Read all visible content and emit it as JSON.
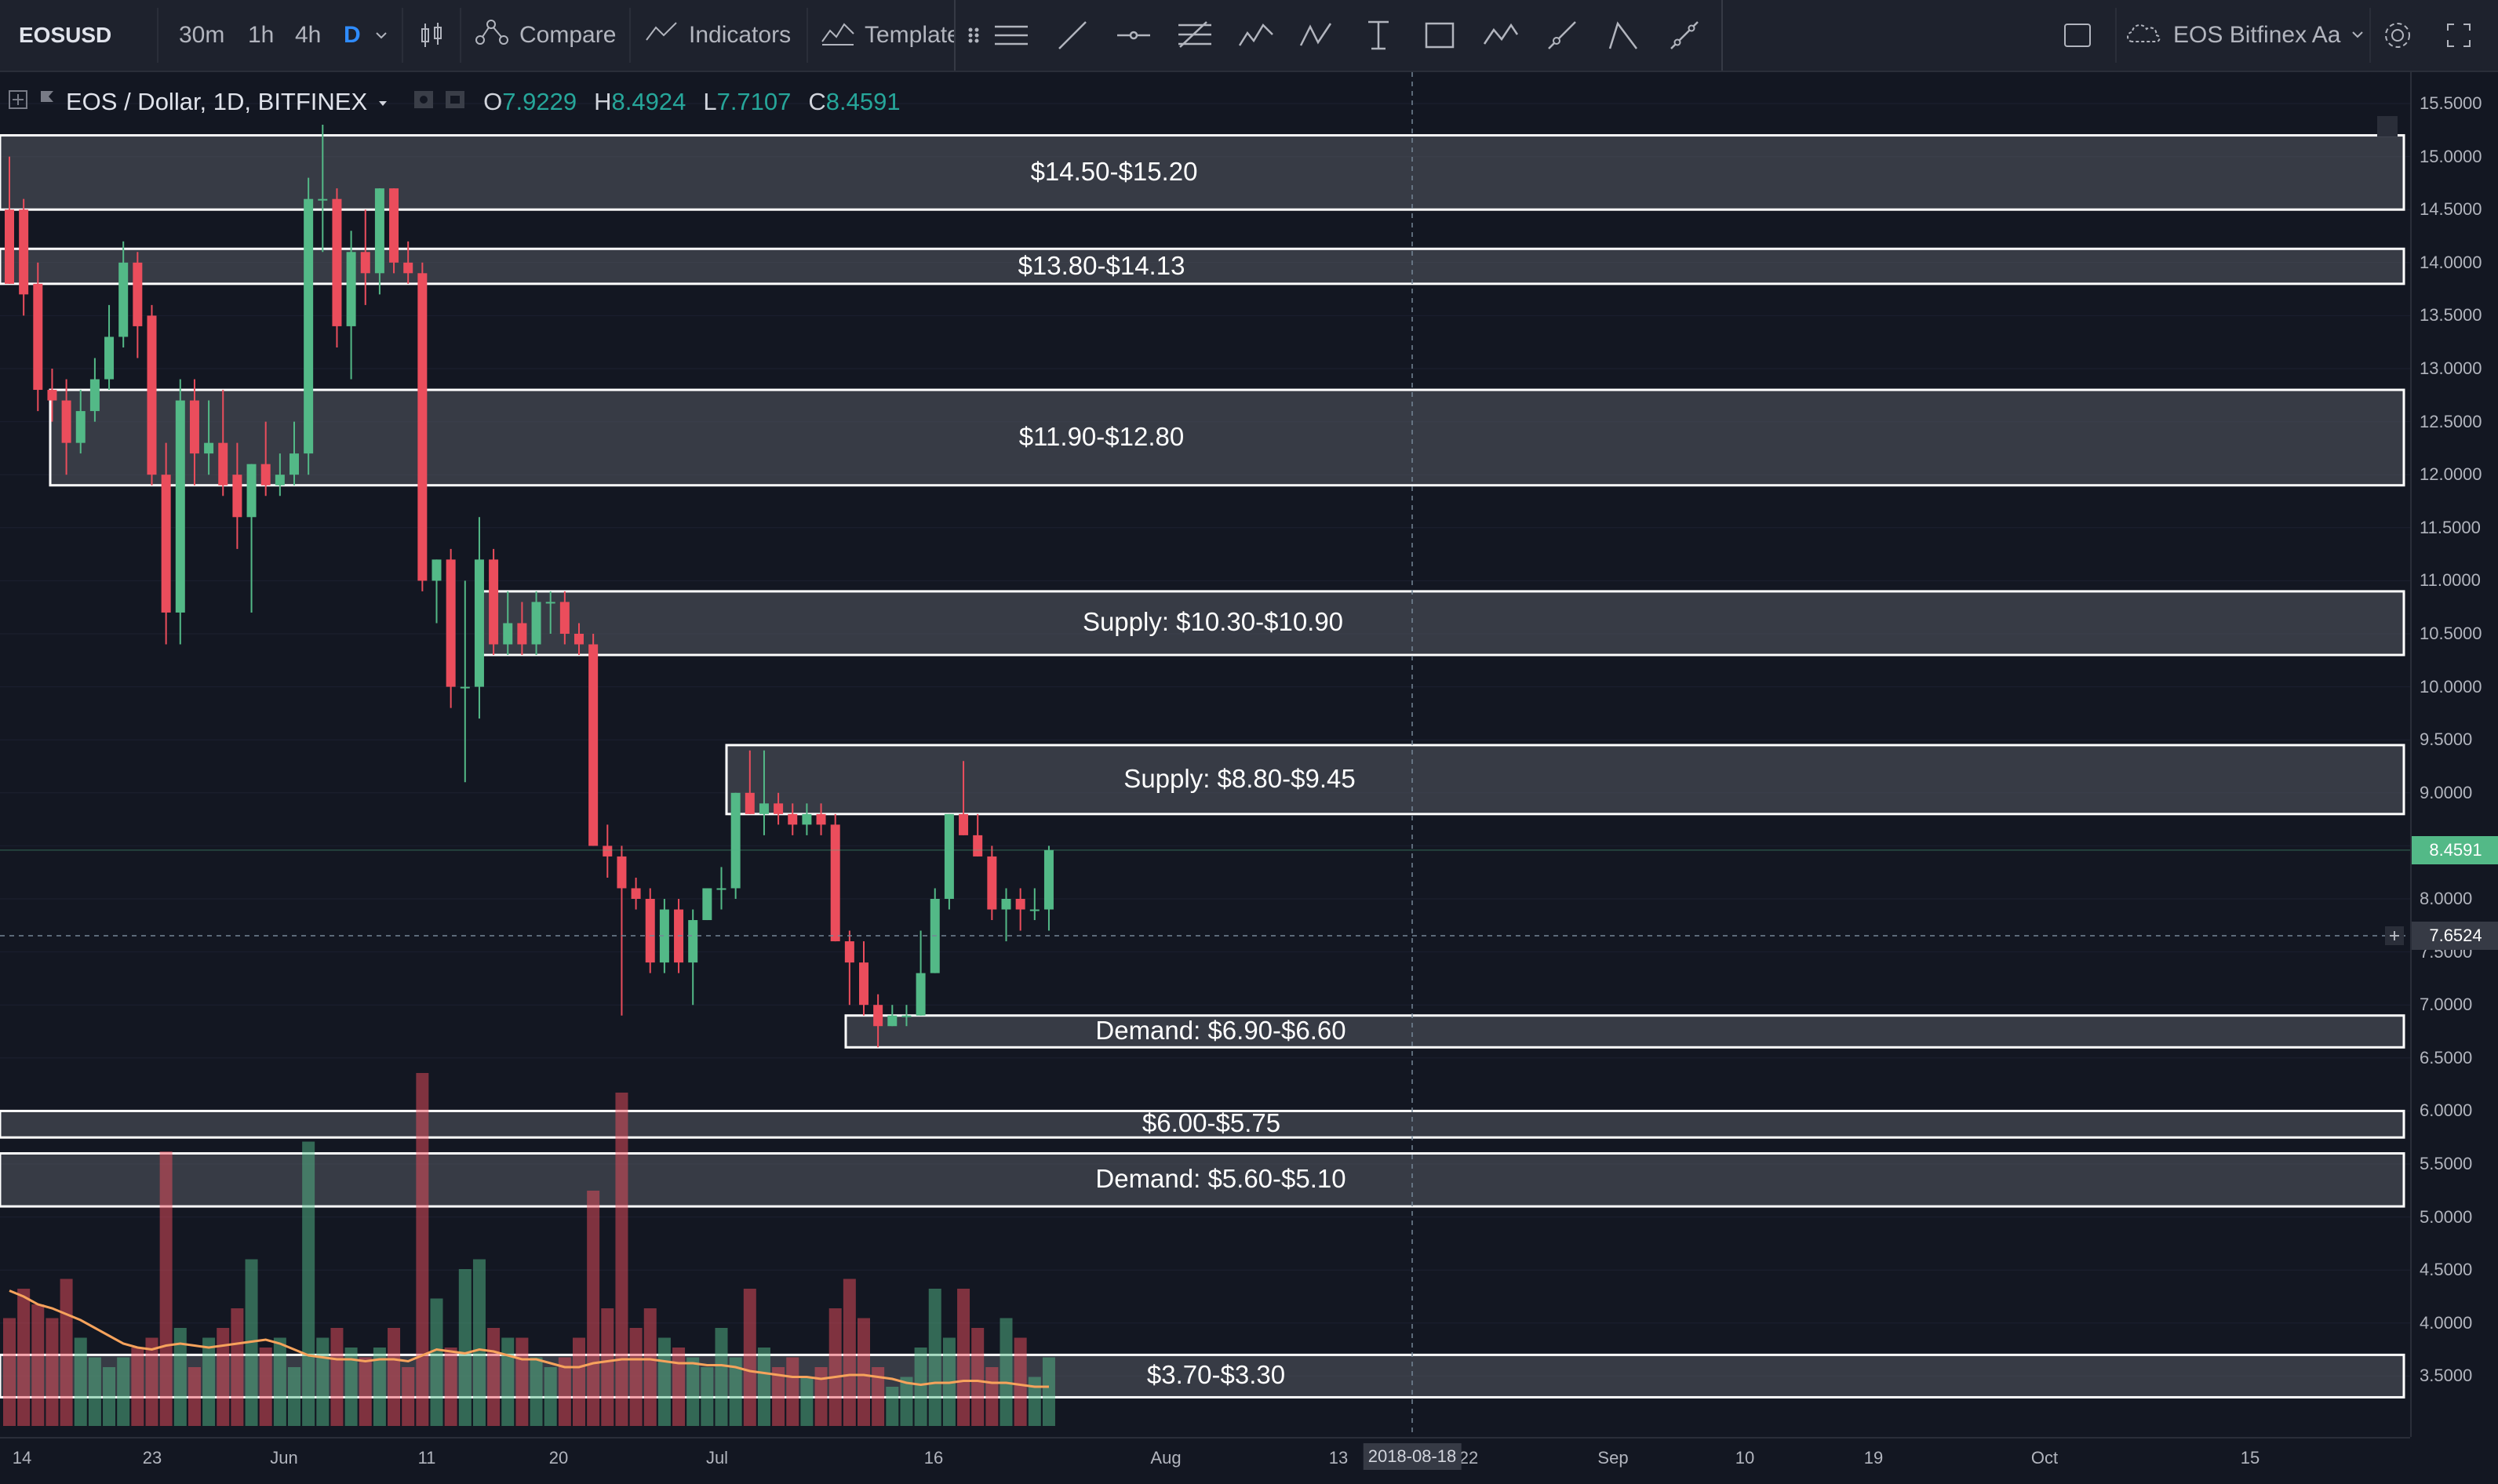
{
  "toolbar": {
    "symbol": "EOSUSD",
    "intervals": [
      "30m",
      "1h",
      "4h",
      "D"
    ],
    "active_interval": "D",
    "compare_label": "Compare",
    "indicators_label": "Indicators",
    "templates_label": "Template",
    "layout_name": "EOS Bitfinex Aa"
  },
  "legend": {
    "title": "EOS / Dollar, 1D, BITFINEX",
    "open_key": "O",
    "open": "7.9229",
    "high_key": "H",
    "high": "8.4924",
    "low_key": "L",
    "low": "7.7107",
    "close_key": "C",
    "close": "8.4591"
  },
  "zones": [
    {
      "label": "$14.50-$15.20",
      "top": 15.2,
      "bottom": 14.5
    },
    {
      "label": "$13.80-$14.13",
      "top": 14.13,
      "bottom": 13.8
    },
    {
      "label": "$11.90-$12.80",
      "top": 12.8,
      "bottom": 11.9
    },
    {
      "label": "Supply: $10.30-$10.90",
      "top": 10.9,
      "bottom": 10.3
    },
    {
      "label": "Supply: $8.80-$9.45",
      "top": 9.45,
      "bottom": 8.8
    },
    {
      "label": "Demand: $6.90-$6.60",
      "top": 6.9,
      "bottom": 6.6
    },
    {
      "label": "$6.00-$5.75",
      "top": 6.0,
      "bottom": 5.75
    },
    {
      "label": "Demand: $5.60-$5.10",
      "top": 5.6,
      "bottom": 5.1
    },
    {
      "label": "$3.70-$3.30",
      "top": 3.7,
      "bottom": 3.3
    }
  ],
  "price_axis": {
    "ticks": [
      "15.5000",
      "15.0000",
      "14.5000",
      "14.0000",
      "13.5000",
      "13.0000",
      "12.5000",
      "12.0000",
      "11.5000",
      "11.0000",
      "10.5000",
      "10.0000",
      "9.5000",
      "9.0000",
      "8.5000",
      "8.0000",
      "7.5000",
      "7.0000",
      "6.5000",
      "6.0000",
      "5.5000",
      "5.0000",
      "4.5000",
      "4.0000",
      "3.5000"
    ],
    "last_price": "8.4591",
    "crosshair_price": "7.6524"
  },
  "time_axis": {
    "ticks": [
      "14",
      "23",
      "Jun",
      "11",
      "20",
      "Jul",
      "16",
      "Aug",
      "13",
      "22",
      "Sep",
      "10",
      "19",
      "Oct",
      "15"
    ],
    "crosshair_date": "2018-08-18"
  },
  "colors": {
    "up": "#53b987",
    "down": "#eb4d5c",
    "background": "#131722",
    "zone_fill": "#555a62",
    "ma": "#f7a35c"
  },
  "chart_data": {
    "type": "candlestick",
    "symbol": "EOSUSD",
    "interval": "1D",
    "exchange": "BITFINEX",
    "ylim": [
      3.2,
      15.7
    ],
    "candles": [
      {
        "o": 14.5,
        "h": 15.0,
        "l": 13.8,
        "c": 13.8
      },
      {
        "o": 14.5,
        "h": 14.6,
        "l": 13.5,
        "c": 13.7
      },
      {
        "o": 13.8,
        "h": 14.0,
        "l": 12.6,
        "c": 12.8
      },
      {
        "o": 12.8,
        "h": 13.0,
        "l": 12.5,
        "c": 12.7
      },
      {
        "o": 12.7,
        "h": 12.9,
        "l": 12.0,
        "c": 12.3
      },
      {
        "o": 12.3,
        "h": 12.8,
        "l": 12.2,
        "c": 12.6
      },
      {
        "o": 12.6,
        "h": 13.1,
        "l": 12.5,
        "c": 12.9
      },
      {
        "o": 12.9,
        "h": 13.6,
        "l": 12.8,
        "c": 13.3
      },
      {
        "o": 13.3,
        "h": 14.2,
        "l": 13.2,
        "c": 14.0
      },
      {
        "o": 14.0,
        "h": 14.1,
        "l": 13.1,
        "c": 13.4
      },
      {
        "o": 13.5,
        "h": 13.6,
        "l": 11.9,
        "c": 12.0
      },
      {
        "o": 12.0,
        "h": 12.3,
        "l": 10.4,
        "c": 10.7
      },
      {
        "o": 10.7,
        "h": 12.9,
        "l": 10.4,
        "c": 12.7
      },
      {
        "o": 12.7,
        "h": 12.9,
        "l": 11.9,
        "c": 12.2
      },
      {
        "o": 12.2,
        "h": 12.7,
        "l": 12.0,
        "c": 12.3
      },
      {
        "o": 12.3,
        "h": 12.8,
        "l": 11.8,
        "c": 11.9
      },
      {
        "o": 12.0,
        "h": 12.3,
        "l": 11.3,
        "c": 11.6
      },
      {
        "o": 11.6,
        "h": 12.1,
        "l": 10.7,
        "c": 12.1
      },
      {
        "o": 12.1,
        "h": 12.5,
        "l": 11.8,
        "c": 11.9
      },
      {
        "o": 11.9,
        "h": 12.2,
        "l": 11.8,
        "c": 12.0
      },
      {
        "o": 12.0,
        "h": 12.5,
        "l": 11.9,
        "c": 12.2
      },
      {
        "o": 12.2,
        "h": 14.8,
        "l": 12.0,
        "c": 14.6
      },
      {
        "o": 14.6,
        "h": 15.3,
        "l": 14.1,
        "c": 14.6
      },
      {
        "o": 14.6,
        "h": 14.7,
        "l": 13.2,
        "c": 13.4
      },
      {
        "o": 13.4,
        "h": 14.3,
        "l": 12.9,
        "c": 14.1
      },
      {
        "o": 14.1,
        "h": 14.5,
        "l": 13.6,
        "c": 13.9
      },
      {
        "o": 13.9,
        "h": 14.7,
        "l": 13.7,
        "c": 14.7
      },
      {
        "o": 14.7,
        "h": 14.7,
        "l": 13.9,
        "c": 14.0
      },
      {
        "o": 14.0,
        "h": 14.2,
        "l": 13.8,
        "c": 13.9
      },
      {
        "o": 13.9,
        "h": 14.0,
        "l": 10.9,
        "c": 11.0
      },
      {
        "o": 11.0,
        "h": 11.2,
        "l": 10.6,
        "c": 11.2
      },
      {
        "o": 11.2,
        "h": 11.3,
        "l": 9.8,
        "c": 10.0
      },
      {
        "o": 10.0,
        "h": 11.0,
        "l": 9.1,
        "c": 10.0
      },
      {
        "o": 10.0,
        "h": 11.6,
        "l": 9.7,
        "c": 11.2
      },
      {
        "o": 11.2,
        "h": 11.3,
        "l": 10.3,
        "c": 10.4
      },
      {
        "o": 10.4,
        "h": 10.9,
        "l": 10.3,
        "c": 10.6
      },
      {
        "o": 10.6,
        "h": 10.8,
        "l": 10.3,
        "c": 10.4
      },
      {
        "o": 10.4,
        "h": 10.9,
        "l": 10.3,
        "c": 10.8
      },
      {
        "o": 10.8,
        "h": 10.9,
        "l": 10.5,
        "c": 10.8
      },
      {
        "o": 10.8,
        "h": 10.9,
        "l": 10.4,
        "c": 10.5
      },
      {
        "o": 10.5,
        "h": 10.6,
        "l": 10.3,
        "c": 10.4
      },
      {
        "o": 10.4,
        "h": 10.5,
        "l": 8.5,
        "c": 8.5
      },
      {
        "o": 8.5,
        "h": 8.7,
        "l": 8.2,
        "c": 8.4
      },
      {
        "o": 8.4,
        "h": 8.5,
        "l": 6.9,
        "c": 8.1
      },
      {
        "o": 8.1,
        "h": 8.2,
        "l": 7.9,
        "c": 8.0
      },
      {
        "o": 8.0,
        "h": 8.1,
        "l": 7.3,
        "c": 7.4
      },
      {
        "o": 7.4,
        "h": 8.0,
        "l": 7.3,
        "c": 7.9
      },
      {
        "o": 7.9,
        "h": 8.0,
        "l": 7.3,
        "c": 7.4
      },
      {
        "o": 7.4,
        "h": 7.9,
        "l": 7.0,
        "c": 7.8
      },
      {
        "o": 7.8,
        "h": 8.1,
        "l": 7.8,
        "c": 8.1
      },
      {
        "o": 8.1,
        "h": 8.3,
        "l": 7.9,
        "c": 8.1
      },
      {
        "o": 8.1,
        "h": 9.0,
        "l": 8.0,
        "c": 9.0
      },
      {
        "o": 9.0,
        "h": 9.4,
        "l": 8.8,
        "c": 8.8
      },
      {
        "o": 8.8,
        "h": 9.4,
        "l": 8.6,
        "c": 8.9
      },
      {
        "o": 8.9,
        "h": 9.0,
        "l": 8.7,
        "c": 8.8
      },
      {
        "o": 8.8,
        "h": 8.9,
        "l": 8.6,
        "c": 8.7
      },
      {
        "o": 8.7,
        "h": 8.9,
        "l": 8.6,
        "c": 8.8
      },
      {
        "o": 8.8,
        "h": 8.9,
        "l": 8.6,
        "c": 8.7
      },
      {
        "o": 8.7,
        "h": 8.8,
        "l": 7.6,
        "c": 7.6
      },
      {
        "o": 7.6,
        "h": 7.7,
        "l": 7.0,
        "c": 7.4
      },
      {
        "o": 7.4,
        "h": 7.6,
        "l": 6.9,
        "c": 7.0
      },
      {
        "o": 7.0,
        "h": 7.1,
        "l": 6.6,
        "c": 6.8
      },
      {
        "o": 6.8,
        "h": 7.0,
        "l": 6.8,
        "c": 6.9
      },
      {
        "o": 6.9,
        "h": 7.0,
        "l": 6.8,
        "c": 6.9
      },
      {
        "o": 6.9,
        "h": 7.7,
        "l": 6.9,
        "c": 7.3
      },
      {
        "o": 7.3,
        "h": 8.1,
        "l": 7.3,
        "c": 8.0
      },
      {
        "o": 8.0,
        "h": 8.8,
        "l": 7.9,
        "c": 8.8
      },
      {
        "o": 8.8,
        "h": 9.3,
        "l": 8.6,
        "c": 8.6
      },
      {
        "o": 8.6,
        "h": 8.8,
        "l": 8.4,
        "c": 8.4
      },
      {
        "o": 8.4,
        "h": 8.5,
        "l": 7.8,
        "c": 7.9
      },
      {
        "o": 7.9,
        "h": 8.1,
        "l": 7.6,
        "c": 8.0
      },
      {
        "o": 8.0,
        "h": 8.1,
        "l": 7.7,
        "c": 7.9
      },
      {
        "o": 7.9,
        "h": 8.1,
        "l": 7.8,
        "c": 7.9
      },
      {
        "o": 7.9,
        "h": 8.5,
        "l": 7.7,
        "c": 8.46
      }
    ],
    "volume": [
      0.55,
      0.7,
      0.62,
      0.55,
      0.75,
      0.45,
      0.35,
      0.3,
      0.35,
      0.4,
      0.45,
      1.4,
      0.5,
      0.3,
      0.45,
      0.5,
      0.6,
      0.85,
      0.4,
      0.45,
      0.3,
      1.45,
      0.45,
      0.5,
      0.4,
      0.35,
      0.4,
      0.5,
      0.3,
      1.8,
      0.65,
      0.4,
      0.8,
      0.85,
      0.5,
      0.45,
      0.45,
      0.35,
      0.3,
      0.35,
      0.45,
      1.2,
      0.6,
      1.7,
      0.5,
      0.6,
      0.45,
      0.4,
      0.35,
      0.3,
      0.5,
      0.35,
      0.7,
      0.4,
      0.3,
      0.35,
      0.25,
      0.3,
      0.6,
      0.75,
      0.55,
      0.3,
      0.2,
      0.25,
      0.4,
      0.7,
      0.45,
      0.7,
      0.5,
      0.3,
      0.55,
      0.45,
      0.25,
      0.35
    ],
    "volume_ma": [
      0.85,
      0.82,
      0.78,
      0.76,
      0.73,
      0.7,
      0.66,
      0.62,
      0.58,
      0.56,
      0.55,
      0.57,
      0.58,
      0.57,
      0.56,
      0.57,
      0.58,
      0.59,
      0.6,
      0.58,
      0.55,
      0.52,
      0.51,
      0.5,
      0.5,
      0.49,
      0.5,
      0.5,
      0.49,
      0.52,
      0.55,
      0.54,
      0.53,
      0.55,
      0.54,
      0.52,
      0.5,
      0.5,
      0.48,
      0.46,
      0.46,
      0.48,
      0.49,
      0.5,
      0.5,
      0.5,
      0.49,
      0.48,
      0.48,
      0.47,
      0.47,
      0.46,
      0.44,
      0.43,
      0.42,
      0.41,
      0.41,
      0.4,
      0.41,
      0.42,
      0.42,
      0.41,
      0.4,
      0.38,
      0.37,
      0.38,
      0.38,
      0.39,
      0.39,
      0.38,
      0.38,
      0.37,
      0.36,
      0.36
    ]
  }
}
